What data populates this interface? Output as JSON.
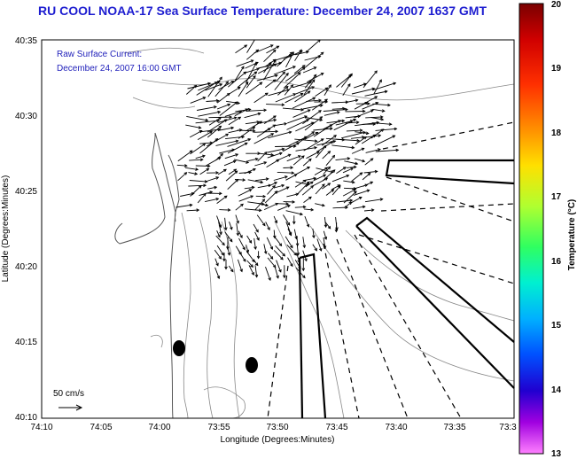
{
  "title": "RU COOL  NOAA-17  Sea Surface Temperature:  December 24, 2007 1637 GMT",
  "current_label_line1": "Raw Surface Current:",
  "current_label_line2": "December 24, 2007 16:00 GMT",
  "scale_label": "50 cm/s",
  "x_axis": {
    "label": "Longitude (Degrees:Minutes)",
    "ticks": [
      "74:10",
      "74:05",
      "74:00",
      "73:55",
      "73:50",
      "73:45",
      "73:40",
      "73:35",
      "73:3"
    ]
  },
  "y_axis": {
    "label": "Latitude (Degrees:Minutes)",
    "ticks": [
      "40:35",
      "40:30",
      "40:25",
      "40:20",
      "40:15",
      "40:10"
    ]
  },
  "colorbar": {
    "label": "Temperature (°C)",
    "ticks": [
      "20",
      "19",
      "18",
      "17",
      "16",
      "15",
      "14",
      "13"
    ],
    "range": [
      13,
      20
    ]
  },
  "colors": {
    "title_text": "#1d1dd0",
    "current_label_text": "#2222bb",
    "land": "#ffffff",
    "contours": "#888888",
    "vectors": "#000000"
  }
}
